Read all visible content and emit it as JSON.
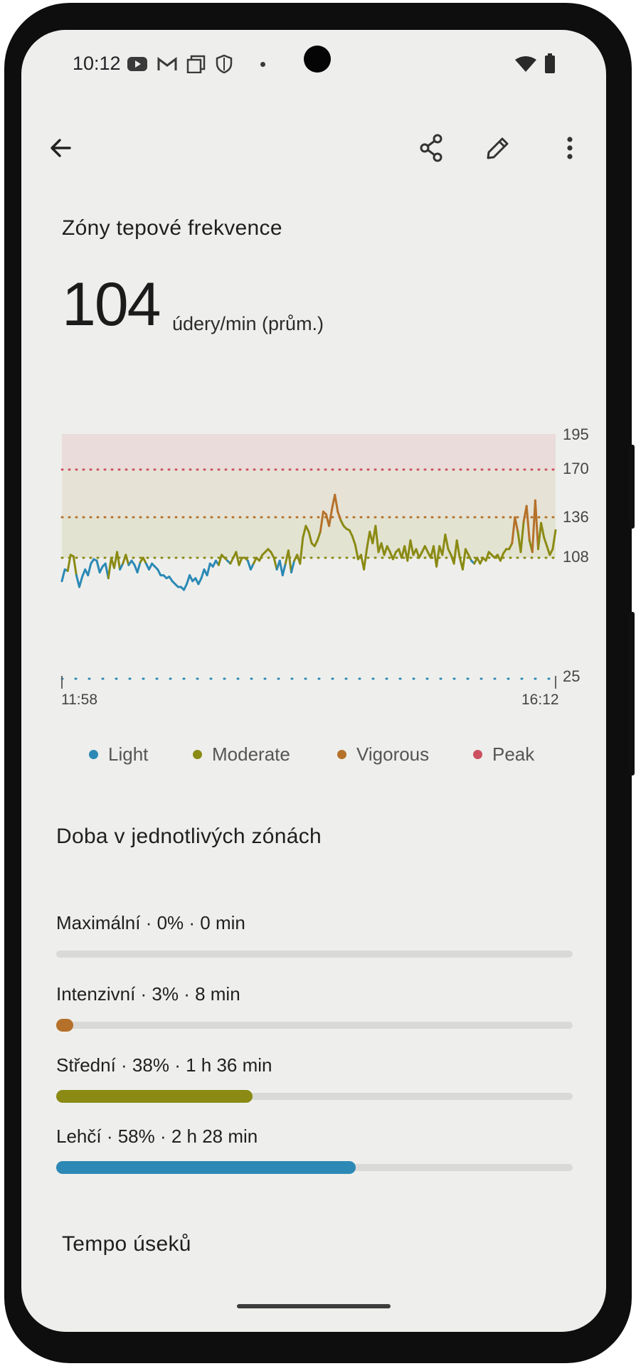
{
  "status_bar": {
    "time": "10:12",
    "left_icons": [
      "youtube-icon",
      "gmail-icon",
      "screenshot-icon",
      "shield-icon",
      "dot-icon"
    ],
    "right_icons": [
      "wifi-icon",
      "battery-icon"
    ]
  },
  "top_bar": {
    "icons": [
      "back-arrow-icon",
      "share-icon",
      "edit-icon",
      "more-vert-icon"
    ]
  },
  "header": {
    "title": "Zóny tepové frekvence",
    "value": "104",
    "unit": "údery/min (prům.)"
  },
  "chart_data": {
    "type": "line",
    "y_ticks": [
      "195",
      "170",
      "136",
      "108",
      "25"
    ],
    "ylim": [
      25,
      195
    ],
    "x_ticks": [
      "11:58",
      "16:12"
    ],
    "zone_thresholds": [
      108,
      136,
      170,
      195
    ],
    "zone_colors": {
      "light": "#2c89b5",
      "moderate": "#8a8a14",
      "vigorous": "#b5712a",
      "peak": "#cc5060"
    },
    "series": [
      {
        "values": [
          92,
          100,
          99,
          110,
          109,
          96,
          88,
          95,
          100,
          96,
          104,
          107,
          106,
          98,
          102,
          104,
          94,
          108,
          101,
          112,
          100,
          104,
          110,
          103,
          106,
          103,
          98,
          105,
          108,
          104,
          100,
          104,
          102,
          100,
          96,
          96,
          94,
          95,
          92,
          90,
          88,
          88,
          86,
          90,
          96,
          92,
          94,
          90,
          94,
          100,
          96,
          104,
          102,
          106,
          103,
          110,
          108,
          106,
          104,
          108,
          112,
          103,
          108,
          108,
          106,
          100,
          104,
          108,
          106,
          110,
          112,
          114,
          112,
          108,
          100,
          106,
          96,
          104,
          113,
          98,
          106,
          110,
          104,
          122,
          130,
          126,
          118,
          116,
          120,
          126,
          140,
          138,
          130,
          142,
          152,
          140,
          134,
          130,
          128,
          127,
          123,
          117,
          107,
          110,
          100,
          114,
          126,
          118,
          130,
          112,
          118,
          110,
          116,
          112,
          107,
          112,
          114,
          108,
          116,
          106,
          120,
          110,
          114,
          108,
          112,
          116,
          112,
          108,
          116,
          102,
          116,
          110,
          124,
          114,
          110,
          104,
          120,
          108,
          100,
          114,
          110,
          106,
          104,
          108,
          104,
          108,
          106,
          112,
          110,
          108,
          110,
          106,
          111,
          114,
          114,
          118,
          136,
          126,
          112,
          133,
          144,
          120,
          112,
          148,
          114,
          132,
          122,
          116,
          110,
          114,
          127
        ]
      }
    ]
  },
  "legend": [
    {
      "label": "Light",
      "color": "#2c89b5"
    },
    {
      "label": "Moderate",
      "color": "#8a8a14"
    },
    {
      "label": "Vigorous",
      "color": "#b5712a"
    },
    {
      "label": "Peak",
      "color": "#cc5060"
    }
  ],
  "zones_section": {
    "title": "Doba v jednotlivých zónách",
    "zones": [
      {
        "label": "Maximální · 0% · 0 min",
        "fraction": 0.0,
        "color": "#cc5060"
      },
      {
        "label": "Intenzivní · 3% · 8 min",
        "fraction": 0.03,
        "color": "#b5712a"
      },
      {
        "label": "Střední · 38% · 1 h 36 min",
        "fraction": 0.38,
        "color": "#8a8a14"
      },
      {
        "label": "Lehčí · 58% · 2 h 28 min",
        "fraction": 0.58,
        "color": "#2c89b5"
      }
    ]
  },
  "next_section": {
    "title": "Tempo úseků"
  }
}
